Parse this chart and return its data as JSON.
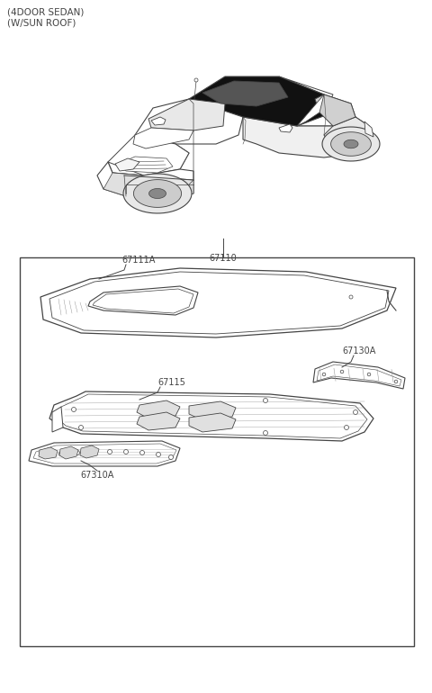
{
  "title_line1": "(4DOOR SEDAN)",
  "title_line2": "(W/SUN ROOF)",
  "part_number_car": "67110",
  "part_number_roof_panel": "67111A",
  "part_number_reinf": "67115",
  "part_number_rail": "67130A",
  "part_number_front": "67310A",
  "bg_color": "#ffffff",
  "line_color": "#444444",
  "text_color": "#444444",
  "font_size_title": 7.5,
  "font_size_parts": 7.0
}
